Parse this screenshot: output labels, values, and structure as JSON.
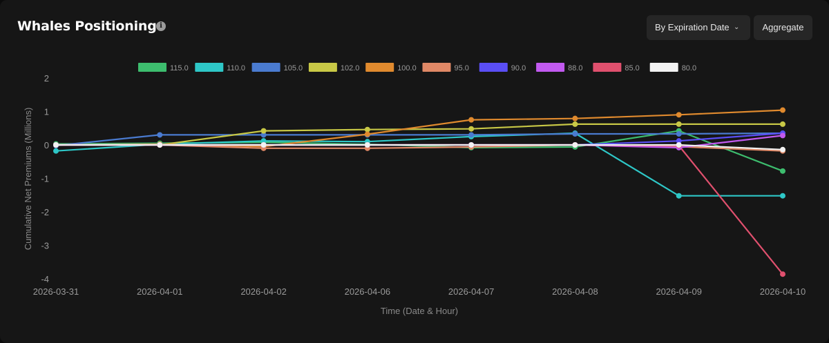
{
  "header": {
    "title": "Whales Positioning",
    "info_icon": "info-icon",
    "expiry_button": "By Expiration Date",
    "aggregate_button": "Aggregate"
  },
  "chart_data": {
    "type": "line",
    "title": "Whales Positioning",
    "xlabel": "Time (Date & Hour)",
    "ylabel": "Cumulative Net Premiums (Millions)",
    "ylim": [
      -4,
      2
    ],
    "yticks": [
      2,
      1,
      0,
      -1,
      -2,
      -3,
      -4
    ],
    "grid": false,
    "legend_position": "top",
    "categories": [
      "2026-03-31",
      "2026-04-01",
      "2026-04-02",
      "2026-04-06",
      "2026-04-07",
      "2026-04-08",
      "2026-04-09",
      "2026-04-10"
    ],
    "series": [
      {
        "name": "115.0",
        "color": "#3dbd6e",
        "values": [
          0.03,
          0.05,
          0.08,
          0.02,
          -0.08,
          -0.06,
          0.42,
          -0.78
        ]
      },
      {
        "name": "110.0",
        "color": "#2ec7c7",
        "values": [
          -0.18,
          0.02,
          0.12,
          0.1,
          0.25,
          0.35,
          -1.52,
          -1.52
        ]
      },
      {
        "name": "105.0",
        "color": "#4a7bd0",
        "values": [
          -0.02,
          0.3,
          0.3,
          0.3,
          0.3,
          0.33,
          0.33,
          0.35
        ]
      },
      {
        "name": "102.0",
        "color": "#c8c846",
        "values": [
          0.0,
          0.0,
          0.42,
          0.46,
          0.48,
          0.62,
          0.62,
          0.62
        ]
      },
      {
        "name": "100.0",
        "color": "#e08a2e",
        "values": [
          0.0,
          0.02,
          -0.05,
          0.32,
          0.75,
          0.79,
          0.9,
          1.04
        ]
      },
      {
        "name": "95.0",
        "color": "#e08866",
        "values": [
          0.0,
          0.0,
          -0.1,
          -0.1,
          -0.06,
          0.0,
          -0.05,
          -0.18
        ]
      },
      {
        "name": "90.0",
        "color": "#5a4ef5",
        "values": [
          0.0,
          0.0,
          0.0,
          0.0,
          0.0,
          0.0,
          0.12,
          0.35
        ]
      },
      {
        "name": "88.0",
        "color": "#c25af0",
        "values": [
          0.0,
          0.0,
          0.0,
          0.0,
          0.0,
          0.0,
          -0.08,
          0.28
        ]
      },
      {
        "name": "85.0",
        "color": "#e0506e",
        "values": [
          0.0,
          0.0,
          0.0,
          0.0,
          0.0,
          0.0,
          -0.02,
          -3.86
        ]
      },
      {
        "name": "80.0",
        "color": "#f2f2f2",
        "values": [
          0.0,
          0.0,
          0.0,
          0.0,
          0.0,
          0.0,
          0.0,
          -0.14
        ]
      }
    ]
  }
}
